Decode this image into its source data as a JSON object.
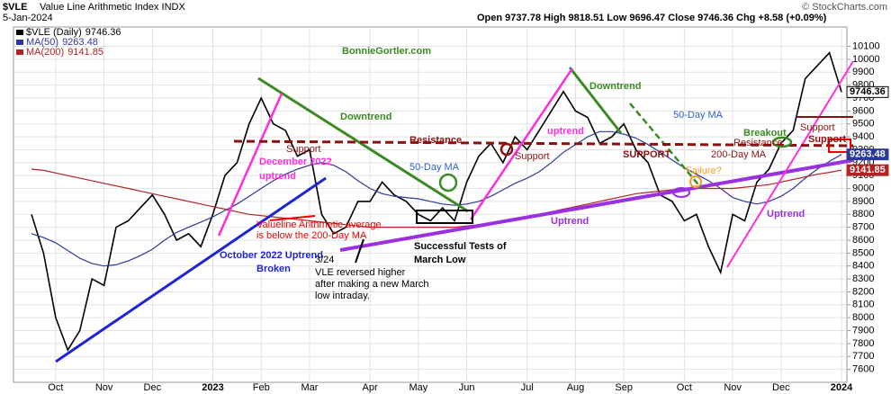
{
  "chart_data": {
    "type": "line",
    "title": "$VLE",
    "subtitle": "Value Line Arithmetic Index INDX",
    "date": "5-Jan-2024",
    "credit": "© StockCharts.com",
    "quote": "Open 9737.78 High 9818.51 Low 9696.47 Close 9746.36 Chg +8.58 (+0.09%)",
    "categories": [
      null,
      null,
      "Oct",
      null,
      null,
      null,
      "Nov",
      null,
      null,
      null,
      "Dec",
      null,
      null,
      null,
      null,
      "2023",
      null,
      null,
      null,
      "Feb",
      null,
      null,
      null,
      "Mar",
      null,
      null,
      null,
      null,
      "Apr",
      null,
      null,
      null,
      "May",
      null,
      null,
      null,
      "Jun",
      null,
      null,
      null,
      null,
      "Jul",
      null,
      null,
      null,
      "Aug",
      null,
      null,
      null,
      "Sep",
      null,
      null,
      null,
      null,
      "Oct",
      null,
      null,
      null,
      "Nov",
      null,
      null,
      null,
      "Dec",
      null,
      null,
      null,
      null,
      "2024"
    ],
    "series": [
      {
        "name": "$VLE (Daily)",
        "color": "#000000",
        "values": [
          8800,
          8500,
          8000,
          7750,
          7900,
          8300,
          8250,
          8700,
          8750,
          8850,
          8950,
          8800,
          8600,
          8650,
          8550,
          8800,
          9100,
          9200,
          9500,
          9700,
          9500,
          9450,
          9250,
          9300,
          8800,
          8650,
          8700,
          8900,
          8900,
          9050,
          8950,
          8900,
          8800,
          8750,
          8850,
          8750,
          9050,
          9250,
          9350,
          9200,
          9400,
          9300,
          9450,
          9600,
          9750,
          9600,
          9550,
          9350,
          9400,
          9500,
          9300,
          9200,
          8950,
          8900,
          8750,
          8800,
          8550,
          8350,
          8800,
          8750,
          9050,
          9150,
          9350,
          9450,
          9850,
          9950,
          10050,
          9746.36
        ]
      },
      {
        "name": "MA(50)",
        "color": "#2b3a9a",
        "values": [
          8650,
          8620,
          8580,
          8520,
          8460,
          8420,
          8400,
          8410,
          8440,
          8480,
          8530,
          8600,
          8660,
          8700,
          8740,
          8780,
          8830,
          8880,
          8940,
          9000,
          9060,
          9110,
          9150,
          9180,
          9200,
          9180,
          9130,
          9060,
          9000,
          8960,
          8940,
          8930,
          8920,
          8900,
          8880,
          8870,
          8880,
          8900,
          8940,
          8990,
          9040,
          9080,
          9130,
          9200,
          9280,
          9340,
          9400,
          9440,
          9440,
          9420,
          9390,
          9340,
          9280,
          9220,
          9160,
          9110,
          9060,
          9000,
          8930,
          8900,
          8880,
          8900,
          8940,
          9000,
          9080,
          9150,
          9210,
          9263.48
        ]
      },
      {
        "name": "MA(200)",
        "color": "#b22222",
        "values": [
          9150,
          9140,
          9120,
          9100,
          9080,
          9060,
          9040,
          9020,
          9000,
          8980,
          8960,
          8940,
          8920,
          8900,
          8880,
          8860,
          8840,
          8820,
          8800,
          8790,
          8780,
          8770,
          8760,
          8750,
          8740,
          8730,
          8720,
          8710,
          8700,
          8700,
          8700,
          8700,
          8700,
          8700,
          8700,
          8700,
          8710,
          8720,
          8730,
          8740,
          8760,
          8780,
          8800,
          8820,
          8840,
          8860,
          8880,
          8900,
          8920,
          8940,
          8960,
          8970,
          8980,
          8990,
          9000,
          9000,
          9000,
          9000,
          9000,
          9010,
          9020,
          9030,
          9050,
          9070,
          9090,
          9110,
          9125,
          9141.85
        ]
      }
    ],
    "ylim": [
      7500,
      10250
    ],
    "yticks": [
      7600,
      7700,
      7800,
      7900,
      8000,
      8100,
      8200,
      8300,
      8400,
      8500,
      8600,
      8700,
      8800,
      8900,
      9000,
      9100,
      9200,
      9300,
      9400,
      9500,
      9600,
      9700,
      9800,
      9900,
      10000,
      10100
    ],
    "grid": true,
    "annotations": [
      "BonnieGortler.com",
      "Downtrend",
      "Downtrend",
      "Resistance",
      "December 2022",
      "uptrend",
      "50-Day MA",
      "50-Day MA",
      "Support",
      "Support",
      "uptrend",
      "SUPPORT",
      "Failure?",
      "Breakout",
      "Resistance",
      "200-Day MA",
      "Support",
      "Support",
      "Valueline Arithmetic average",
      "is below the 200-Day MA",
      "October 2022 Uptrend",
      "Broken",
      "3/24",
      "VLE reversed higher",
      "after making a new March",
      "low intraday.",
      "Successful Tests of",
      "March Low",
      "Uptrend",
      "Uptrend"
    ]
  }
}
